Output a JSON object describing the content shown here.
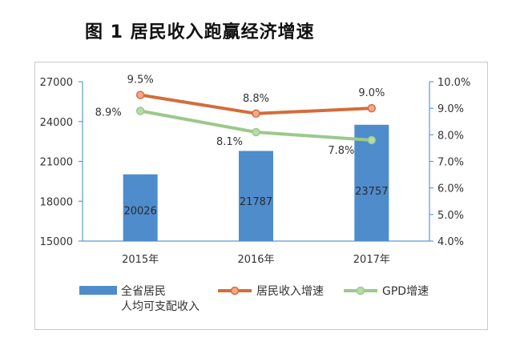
{
  "figure_title": "图 1  居民收入跑赢经济增速",
  "chart_data": {
    "type": "bar+line",
    "categories": [
      "2015年",
      "2016年",
      "2017年"
    ],
    "bar_series": {
      "name_lines": [
        "全省居民",
        "人均可支配收入"
      ],
      "values": [
        20026,
        21787,
        23757
      ],
      "value_labels": [
        "20026",
        "21787",
        "23757"
      ],
      "color": "#4e8ccc"
    },
    "line_series": [
      {
        "name": "居民收入增速",
        "values": [
          9.5,
          8.8,
          9.0
        ],
        "labels": [
          "9.5%",
          "8.8%",
          "9.0%"
        ],
        "color": "#d46c3b",
        "marker_fill": "#f2a98a"
      },
      {
        "name": "GPD增速",
        "values": [
          8.9,
          8.1,
          7.8
        ],
        "labels": [
          "8.9%",
          "8.1%",
          "7.8%"
        ],
        "color": "#9bc98b",
        "marker_fill": "#b6dca8"
      }
    ],
    "y_left": {
      "min": 15000,
      "max": 27000,
      "ticks": [
        "27000",
        "24000",
        "21000",
        "18000",
        "15000"
      ]
    },
    "y_right": {
      "min": 4.0,
      "max": 10.0,
      "ticks": [
        "10.0%",
        "9.0%",
        "8.0%",
        "7.0%",
        "6.0%",
        "5.0%",
        "4.0%"
      ]
    },
    "grid": false,
    "legend_position": "bottom",
    "axis_color": "#5b9bd5"
  }
}
